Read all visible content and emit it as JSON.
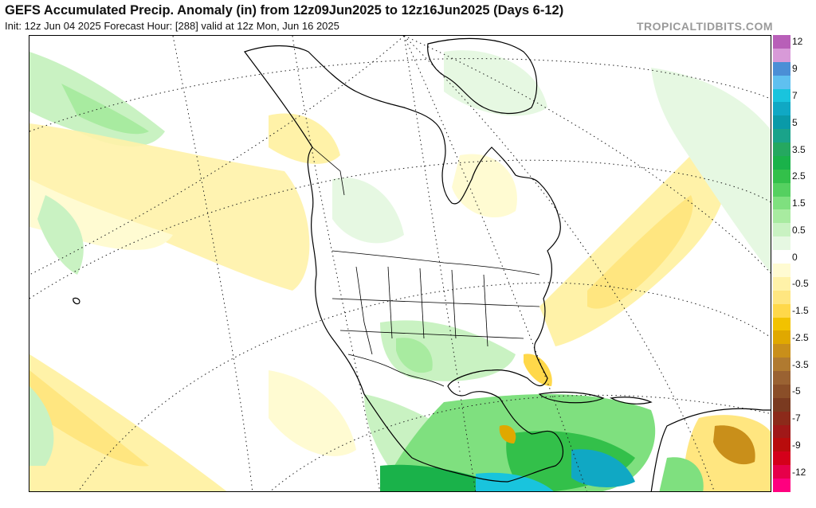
{
  "header": {
    "title": "GEFS Accumulated Precip. Anomaly (in) from 12z09Jun2025 to 12z16Jun2025 (Days 6-12)",
    "subtitle": "Init: 12z Jun 04 2025   Forecast Hour: [288]   valid at 12z Mon, Jun 16 2025",
    "brand": "TROPICALTIDBITS.COM"
  },
  "colorbar": {
    "bins": [
      {
        "color": "#b85fb8",
        "label": "12"
      },
      {
        "color": "#d89ad8"
      },
      {
        "color": "#4b8fd6",
        "label": "9"
      },
      {
        "color": "#5fc0f0"
      },
      {
        "color": "#19c4dd",
        "label": "7"
      },
      {
        "color": "#10a8c4"
      },
      {
        "color": "#0a9aa8",
        "label": "5"
      },
      {
        "color": "#1aa38a"
      },
      {
        "color": "#25a860",
        "label": "3.5"
      },
      {
        "color": "#1ab24a"
      },
      {
        "color": "#33c04a",
        "label": "2.5"
      },
      {
        "color": "#55d060"
      },
      {
        "color": "#7fe07f",
        "label": "1.5"
      },
      {
        "color": "#a8eba0"
      },
      {
        "color": "#c9f2c2",
        "label": "0.5"
      },
      {
        "color": "#e6f8e2"
      },
      {
        "color": "#ffffff",
        "label": "0"
      },
      {
        "color": "#fffbd2"
      },
      {
        "color": "#fff2a8",
        "label": "-0.5"
      },
      {
        "color": "#ffe680"
      },
      {
        "color": "#ffd84a",
        "label": "-1.5"
      },
      {
        "color": "#f2c200"
      },
      {
        "color": "#e0a800",
        "label": "-2.5"
      },
      {
        "color": "#c98f1a"
      },
      {
        "color": "#b07a30",
        "label": "-3.5"
      },
      {
        "color": "#9a6232"
      },
      {
        "color": "#8a4e28",
        "label": "-5"
      },
      {
        "color": "#7a3a20"
      },
      {
        "color": "#8c2a1a",
        "label": "-7"
      },
      {
        "color": "#a01818"
      },
      {
        "color": "#b80c0c",
        "label": "-9"
      },
      {
        "color": "#d4001a"
      },
      {
        "color": "#e6004a",
        "label": "-12"
      },
      {
        "color": "#ff007f"
      }
    ]
  },
  "map_colors": {
    "ocean": "#ffffff",
    "land_border": "#000000",
    "graticule": "#222222"
  }
}
